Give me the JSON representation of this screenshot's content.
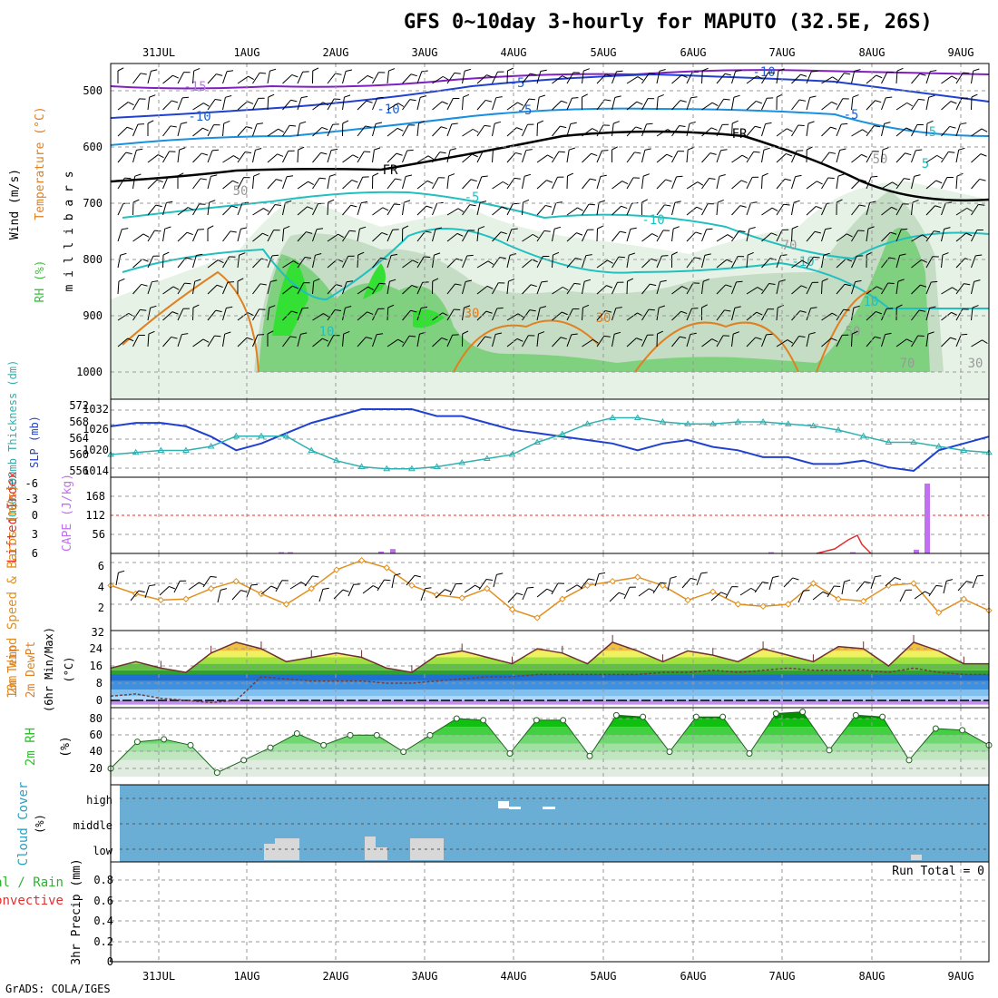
{
  "title": "GFS 0~10day 3-hourly for MAPUTO (32.5E, 26S)",
  "footer": "GrADS: COLA/IGES",
  "date_ticks": [
    "31JUL",
    "1AUG",
    "2AUG",
    "3AUG",
    "4AUG",
    "5AUG",
    "6AUG",
    "7AUG",
    "8AUG",
    "9AUG"
  ],
  "colors": {
    "rh": "#3fbf3f",
    "temp_warm": "#e08020",
    "temp_cold": "#2060d0",
    "temp_cyan": "#20c0c0",
    "freezing": "#000000",
    "wind": "#000000",
    "slp": "#2040d0",
    "thickness": "#30b0b0",
    "cape": "#c070f0",
    "lifted": "#e03030",
    "wind10": "#e09020",
    "cloud": "#6aaed6",
    "cloud_patch": "#d8d8d8",
    "rh2m": "#30c030"
  },
  "chart_data": [
    {
      "type": "heatmap",
      "panel": "upper-air",
      "ylabel": "m i l l i b a r s",
      "ylabel_rh": "RH (%)",
      "ylabel_temp": "Temperature (°C)",
      "ylabel_wind": "Wind (m/s)",
      "y_ticks": [
        "500",
        "600",
        "700",
        "800",
        "900",
        "1000"
      ],
      "ylim": [
        1000,
        450
      ],
      "contour_labels": [
        "-15",
        "-10",
        "-10",
        "-5",
        "-5",
        "-10",
        "-5",
        "FR",
        "FR",
        "-5",
        "-10",
        "-10",
        "10",
        "5",
        "5",
        "10",
        "30",
        "30",
        "50",
        "50",
        "50",
        "70",
        "70",
        "30"
      ],
      "freezing_label": "FR"
    },
    {
      "type": "line",
      "panel": "slp-thickness",
      "ylabel_left": "1000-500mb Thickness (dm)",
      "ylabel_right": "SLP (mb)",
      "left_ticks": [
        "572",
        "568",
        "564",
        "560",
        "556"
      ],
      "right_ticks": [
        "1032",
        "1026",
        "1020",
        "1014"
      ],
      "series": [
        {
          "name": "SLP",
          "axis": "right",
          "values": [
            1027,
            1028,
            1028,
            1027,
            1024,
            1020,
            1022,
            1025,
            1028,
            1030,
            1032,
            1032,
            1032,
            1030,
            1030,
            1028,
            1026,
            1025,
            1024,
            1023,
            1022,
            1020,
            1022,
            1023,
            1021,
            1020,
            1018,
            1018,
            1016,
            1016,
            1017,
            1015,
            1014,
            1020,
            1022,
            1024
          ]
        },
        {
          "name": "Thickness",
          "axis": "left",
          "values": [
            560,
            560.5,
            561,
            561,
            562,
            564.5,
            564.5,
            564.5,
            561,
            558.5,
            557,
            556.5,
            556.5,
            557,
            558,
            559,
            560,
            563,
            565,
            567.5,
            569,
            569,
            568,
            567.5,
            567.5,
            568,
            568,
            567.5,
            567,
            566,
            564.5,
            563,
            563,
            562,
            561,
            560.5
          ]
        }
      ]
    },
    {
      "type": "bar",
      "panel": "cape-lifted",
      "ylabel_left": "Lifted Index",
      "ylabel_right": "CAPE (J/kg)",
      "left_ticks": [
        "-6",
        "-3",
        "0",
        "3",
        "6"
      ],
      "right_ticks": [
        "168",
        "112",
        "56"
      ],
      "cape_peak": 224,
      "lifted_index_peak": 3
    },
    {
      "type": "line",
      "panel": "wind10m",
      "ylabel": "10m Wind Speed & Barbs (m/s)",
      "ylim": [
        0,
        6.5
      ],
      "y_ticks": [
        "6",
        "4",
        "2",
        "32"
      ],
      "series": [
        {
          "name": "Speed",
          "values": [
            3.8,
            3.0,
            2.4,
            2.5,
            3.5,
            4.2,
            3.0,
            2.0,
            3.5,
            5.3,
            6.2,
            5.5,
            3.8,
            2.9,
            2.6,
            3.5,
            1.5,
            0.7,
            2.5,
            3.8,
            4.2,
            4.6,
            3.8,
            2.4,
            3.2,
            2.0,
            1.8,
            2.0,
            4.0,
            2.5,
            2.3,
            3.8,
            4.0,
            1.2,
            2.5,
            1.4
          ]
        }
      ]
    },
    {
      "type": "area",
      "panel": "temp2m",
      "ylabel": "2m Temp 2m DewPt (6hr Min/Max) (°C)",
      "y_ticks": [
        "24",
        "16",
        "8",
        "0"
      ],
      "ylim": [
        -2,
        28
      ],
      "series": [
        {
          "name": "Temp",
          "values": [
            15,
            18,
            15,
            13,
            22,
            27,
            24,
            18,
            20,
            22,
            20,
            15,
            13,
            21,
            23,
            20,
            17,
            24,
            22,
            17,
            27,
            23,
            18,
            23,
            21,
            18,
            24,
            21,
            18,
            25,
            24,
            16,
            27,
            23,
            17,
            17
          ]
        },
        {
          "name": "DewPt",
          "values": [
            2,
            3,
            1,
            0,
            -1,
            0,
            11,
            10,
            9,
            9,
            9,
            8,
            8,
            9,
            10,
            11,
            11,
            12,
            12,
            12,
            12,
            12,
            13,
            13,
            14,
            13,
            14,
            15,
            14,
            14,
            14,
            13,
            15,
            13,
            12,
            12
          ]
        }
      ]
    },
    {
      "type": "area",
      "panel": "rh2m",
      "ylabel": "2m RH (%)",
      "y_ticks": [
        "80",
        "60",
        "40",
        "20"
      ],
      "ylim": [
        10,
        90
      ],
      "values": [
        20,
        52,
        55,
        48,
        15,
        30,
        45,
        62,
        48,
        60,
        60,
        40,
        60,
        80,
        78,
        38,
        78,
        78,
        35,
        84,
        82,
        40,
        82,
        82,
        38,
        86,
        88,
        42,
        84,
        82,
        30,
        68,
        66,
        48
      ]
    },
    {
      "type": "heatmap",
      "panel": "cloud",
      "ylabel": "Cloud Cover (%)",
      "y_ticks": [
        "high",
        "middle",
        "low"
      ]
    },
    {
      "type": "bar",
      "panel": "precip",
      "ylabel": "3hr Precip (mm)",
      "legend_left": [
        "tal / Rain",
        "Convective"
      ],
      "y_ticks": [
        "0.8",
        "0.6",
        "0.4",
        "0.2",
        "0"
      ],
      "ylim": [
        0,
        1
      ],
      "run_total": "Run Total = 0",
      "values": []
    }
  ]
}
